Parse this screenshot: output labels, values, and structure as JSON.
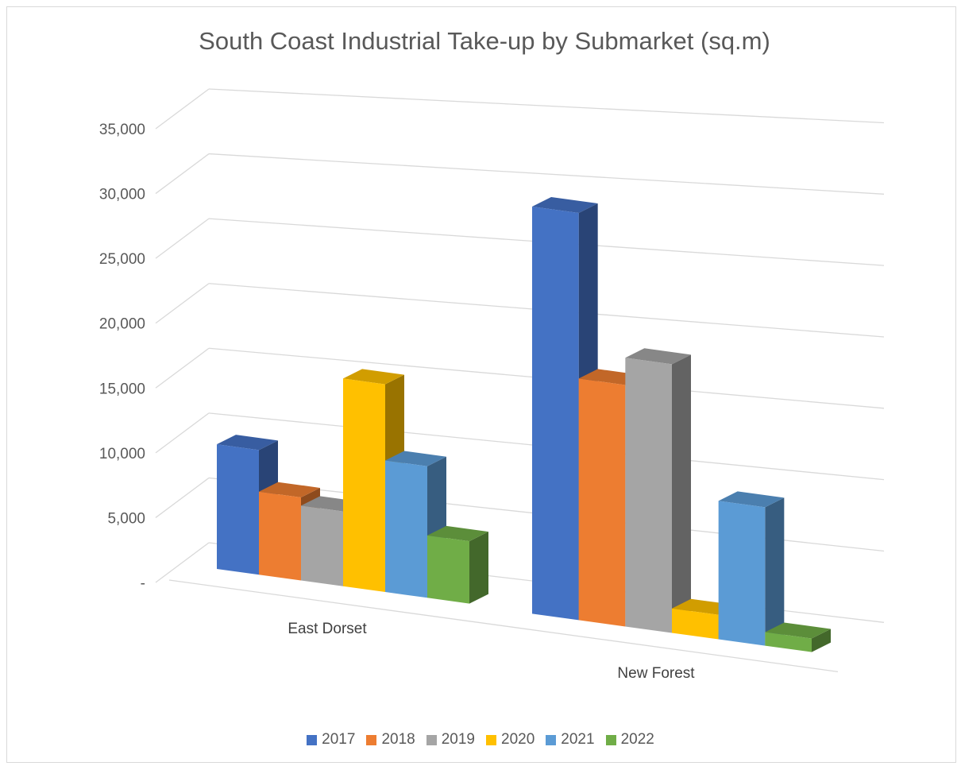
{
  "chart_data": {
    "type": "bar",
    "title": "South Coast Industrial Take-up by Submarket (sq.m)",
    "xlabel": "",
    "ylabel": "",
    "categories": [
      "East Dorset",
      "New Forest"
    ],
    "series": [
      {
        "name": "2017",
        "values": [
          9000,
          30000
        ],
        "color": "#4472C4"
      },
      {
        "name": "2018",
        "values": [
          6000,
          17800
        ],
        "color": "#ED7D31"
      },
      {
        "name": "2019",
        "values": [
          5400,
          19800
        ],
        "color": "#A5A5A5"
      },
      {
        "name": "2020",
        "values": [
          15000,
          1800
        ],
        "color": "#FFC000"
      },
      {
        "name": "2021",
        "values": [
          9500,
          10200
        ],
        "color": "#5B9BD5"
      },
      {
        "name": "2022",
        "values": [
          4500,
          1000
        ],
        "color": "#70AD47"
      }
    ],
    "ylim": [
      0,
      35000
    ],
    "yticks": [
      "-",
      "5,000",
      "10,000",
      "15,000",
      "20,000",
      "25,000",
      "30,000",
      "35,000"
    ],
    "grid": true,
    "legend_position": "bottom",
    "style": "3d-column"
  }
}
